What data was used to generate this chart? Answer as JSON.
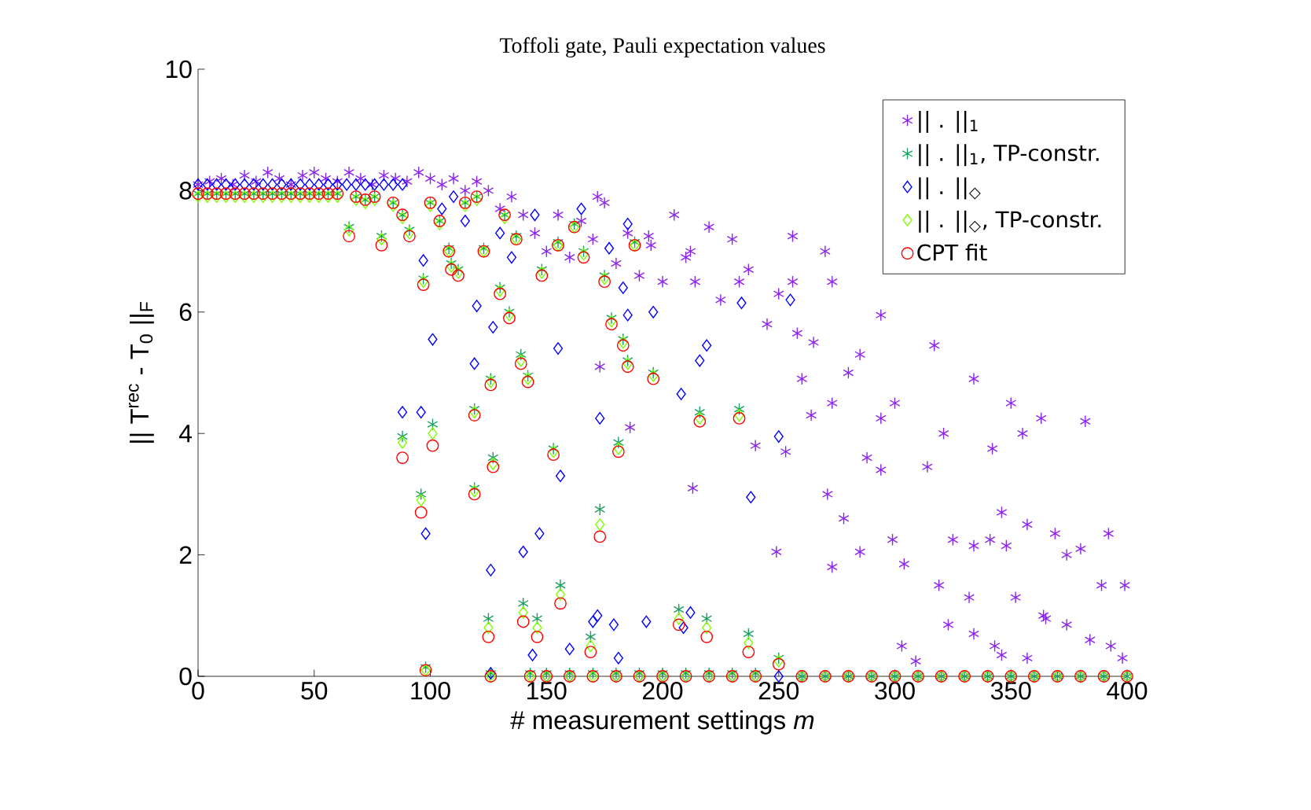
{
  "chart_data": {
    "type": "scatter",
    "title": "Toffoli gate, Pauli expectation values",
    "xlabel": "# measurement settings *m*",
    "ylabel": "|| T$^{rec}$ - T$_{0}$ ||$_{F}$",
    "xlim": [
      0,
      400
    ],
    "ylim": [
      0,
      10
    ],
    "xticks": [
      0,
      50,
      100,
      150,
      200,
      250,
      300,
      350,
      400
    ],
    "yticks": [
      0,
      2,
      4,
      6,
      8,
      10
    ],
    "legend": "top right",
    "series": [
      {
        "name": "|| . ||$_{1}$",
        "color": "#8b22ee",
        "marker": "cross",
        "x": [
          0,
          5,
          10,
          15,
          20,
          25,
          30,
          35,
          40,
          45,
          50,
          55,
          60,
          65,
          70,
          75,
          80,
          85,
          90,
          95,
          100,
          105,
          110,
          115,
          120,
          125,
          130,
          135,
          140,
          145,
          150,
          155,
          160,
          165,
          170,
          172,
          175,
          180,
          185,
          190,
          194,
          195,
          200,
          205,
          210,
          212,
          214,
          220,
          225,
          230,
          233,
          237,
          245,
          250,
          256,
          256,
          258,
          260,
          265,
          270,
          273,
          264,
          273,
          280,
          285,
          288,
          294,
          294,
          294,
          300,
          314,
          317,
          321,
          334,
          355,
          350,
          363,
          342,
          186,
          173,
          213,
          240,
          253,
          249,
          271,
          278,
          285,
          273,
          304,
          299,
          325,
          334,
          348,
          357,
          369,
          380,
          392,
          346,
          341,
          319,
          323,
          334,
          343,
          346,
          357,
          365,
          374,
          384,
          393,
          398,
          389,
          399,
          303,
          309,
          332,
          352,
          364,
          374,
          382
        ],
        "values": [
          8.1,
          8.15,
          8.2,
          8.1,
          8.25,
          8.15,
          8.3,
          8.2,
          8.1,
          8.25,
          8.3,
          8.2,
          8.15,
          8.3,
          8.2,
          8.1,
          8.25,
          8.2,
          8.15,
          8.3,
          8.2,
          8.1,
          8.2,
          8.0,
          8.15,
          8.0,
          7.7,
          7.9,
          7.6,
          7.3,
          7.0,
          7.6,
          6.9,
          7.5,
          7.2,
          7.9,
          7.8,
          6.8,
          7.3,
          6.6,
          7.25,
          7.1,
          6.5,
          7.6,
          6.9,
          7.0,
          6.5,
          7.4,
          6.2,
          7.2,
          6.5,
          6.7,
          5.8,
          6.3,
          7.25,
          6.5,
          5.65,
          4.9,
          5.5,
          7.0,
          6.5,
          4.3,
          4.5,
          5.0,
          5.3,
          3.6,
          3.4,
          5.95,
          4.25,
          4.5,
          3.45,
          5.45,
          4.0,
          4.9,
          4.0,
          4.5,
          4.25,
          3.75,
          4.1,
          5.1,
          3.1,
          3.8,
          3.7,
          2.05,
          3.0,
          2.6,
          2.05,
          1.8,
          1.85,
          2.25,
          2.25,
          2.15,
          2.15,
          2.5,
          2.35,
          2.1,
          2.35,
          2.7,
          2.25,
          1.5,
          0.85,
          0.7,
          0.5,
          0.35,
          0.3,
          0.95,
          0.85,
          0.6,
          0.5,
          0.3,
          1.5,
          1.5,
          0.5,
          0.25,
          1.3,
          1.3,
          1.0,
          2.0,
          4.2
        ]
      },
      {
        "name": "|| . ||$_{1}$, TP-constr.",
        "color": "#17a05c",
        "marker": "cross",
        "x": [
          0,
          4,
          8,
          12,
          16,
          20,
          24,
          28,
          32,
          36,
          40,
          44,
          48,
          52,
          56,
          60,
          65,
          68,
          72,
          76,
          79,
          84,
          88,
          88,
          91,
          96,
          97,
          98,
          100,
          101,
          104,
          108,
          109,
          112,
          115,
          119,
          119,
          120,
          123,
          125,
          126,
          126,
          127,
          130,
          132,
          134,
          137,
          139,
          140,
          142,
          143,
          146,
          148,
          150,
          153,
          155,
          156,
          160,
          162,
          166,
          169,
          170,
          173,
          175,
          178,
          180,
          181,
          183,
          185,
          188,
          190,
          196,
          200,
          207,
          210,
          216,
          219,
          220,
          230,
          233,
          237,
          240,
          250,
          260,
          270,
          280,
          290,
          300,
          310,
          320,
          330,
          340,
          350,
          360,
          370,
          380,
          390,
          400
        ],
        "values": [
          7.95,
          7.95,
          7.95,
          7.95,
          7.95,
          7.95,
          7.95,
          7.95,
          7.95,
          7.95,
          7.95,
          7.95,
          7.95,
          7.95,
          7.95,
          7.95,
          7.4,
          7.9,
          7.85,
          7.9,
          7.25,
          7.8,
          3.95,
          7.6,
          7.35,
          3.0,
          6.55,
          0.15,
          7.8,
          4.15,
          7.5,
          7.05,
          6.8,
          6.7,
          7.8,
          4.4,
          3.1,
          7.9,
          7.05,
          0.95,
          4.9,
          0.05,
          3.6,
          6.4,
          7.6,
          6.0,
          7.25,
          5.3,
          1.2,
          4.95,
          0.05,
          0.95,
          6.7,
          0.05,
          3.75,
          7.15,
          1.5,
          0.05,
          7.45,
          7.0,
          0.65,
          0.05,
          2.75,
          6.6,
          5.9,
          0.05,
          3.85,
          5.55,
          5.2,
          7.15,
          0.05,
          5.0,
          0.05,
          1.1,
          0.05,
          4.35,
          0.95,
          0.05,
          0.05,
          4.4,
          0.7,
          0.05,
          0.3,
          0,
          0,
          0,
          0,
          0,
          0,
          0,
          0,
          0,
          0,
          0,
          0,
          0,
          0,
          0
        ]
      },
      {
        "name": "|| . ||$_{◇}$",
        "color": "#0000ff",
        "marker": "diamond",
        "x": [
          0,
          4,
          8,
          12,
          16,
          20,
          24,
          28,
          32,
          36,
          40,
          44,
          48,
          52,
          56,
          60,
          64,
          68,
          72,
          76,
          80,
          84,
          88,
          88,
          96,
          97,
          98,
          101,
          105,
          110,
          115,
          119,
          120,
          126,
          126,
          127,
          130,
          135,
          140,
          144,
          145,
          147,
          150,
          155,
          156,
          160,
          160,
          165,
          170,
          172,
          173,
          177,
          179,
          181,
          183,
          185,
          185,
          193,
          196,
          208,
          209,
          212,
          216,
          219,
          234,
          238,
          250,
          255,
          180,
          190,
          200,
          210,
          220,
          230,
          240,
          250,
          260,
          270,
          280,
          290,
          300,
          310,
          320,
          330,
          340,
          350,
          360,
          370,
          380,
          390,
          400
        ],
        "values": [
          8.1,
          8.1,
          8.1,
          8.1,
          8.1,
          8.1,
          8.1,
          8.1,
          8.1,
          8.1,
          8.1,
          8.1,
          8.1,
          8.1,
          8.1,
          8.1,
          8.1,
          8.1,
          8.1,
          8.1,
          8.1,
          8.1,
          8.1,
          4.35,
          4.35,
          6.85,
          2.35,
          5.55,
          7.7,
          7.9,
          7.5,
          5.15,
          6.1,
          0.05,
          1.75,
          5.75,
          7.3,
          6.9,
          2.05,
          0.35,
          7.6,
          2.35,
          0,
          5.4,
          3.3,
          0.45,
          0,
          7.7,
          0.9,
          1.0,
          4.25,
          7.05,
          0.85,
          0.3,
          6.4,
          5.95,
          7.45,
          0.9,
          6.0,
          4.65,
          0.8,
          1.05,
          5.2,
          5.45,
          6.15,
          2.95,
          3.95,
          6.2,
          0,
          0,
          0,
          0,
          0,
          0,
          0,
          0,
          0,
          0,
          0,
          0,
          0,
          0,
          0,
          0,
          0,
          0,
          0,
          0,
          0,
          0,
          0
        ]
      },
      {
        "name": "|| . ||$_{◇}$, TP-constr.",
        "color": "#80ff00",
        "marker": "diamond",
        "x": [
          0,
          4,
          8,
          12,
          16,
          20,
          24,
          28,
          32,
          36,
          40,
          44,
          48,
          52,
          56,
          60,
          65,
          68,
          72,
          76,
          79,
          84,
          88,
          88,
          91,
          96,
          97,
          98,
          100,
          101,
          104,
          108,
          109,
          112,
          115,
          119,
          119,
          120,
          123,
          125,
          126,
          126,
          127,
          130,
          132,
          134,
          137,
          139,
          140,
          142,
          143,
          146,
          148,
          150,
          153,
          155,
          156,
          160,
          162,
          166,
          169,
          170,
          173,
          175,
          178,
          180,
          181,
          183,
          185,
          188,
          190,
          196,
          200,
          207,
          210,
          216,
          219,
          220,
          230,
          233,
          237,
          240,
          250,
          260,
          270,
          280,
          290,
          300,
          310,
          320,
          330,
          340,
          350,
          360,
          370,
          380,
          390,
          400
        ],
        "values": [
          7.9,
          7.9,
          7.9,
          7.9,
          7.9,
          7.9,
          7.9,
          7.9,
          7.9,
          7.9,
          7.9,
          7.9,
          7.9,
          7.9,
          7.9,
          7.9,
          7.35,
          7.85,
          7.8,
          7.85,
          7.2,
          7.75,
          3.85,
          7.55,
          7.3,
          2.9,
          6.5,
          0.1,
          7.75,
          4.0,
          7.45,
          7.0,
          6.75,
          6.65,
          7.75,
          4.35,
          3.05,
          7.85,
          7.0,
          0.8,
          4.85,
          0,
          3.5,
          6.35,
          7.55,
          5.95,
          7.2,
          5.2,
          1.05,
          4.9,
          0,
          0.8,
          6.65,
          0,
          3.7,
          7.1,
          1.35,
          0,
          7.4,
          6.95,
          0.5,
          0,
          2.5,
          6.55,
          5.85,
          0,
          3.75,
          5.5,
          5.15,
          7.1,
          0,
          4.95,
          0,
          0.95,
          0,
          4.25,
          0.8,
          0,
          0,
          4.3,
          0.55,
          0,
          0.25,
          0,
          0,
          0,
          0,
          0,
          0,
          0,
          0,
          0,
          0,
          0,
          0,
          0,
          0,
          0
        ]
      },
      {
        "name": "CPT fit",
        "color": "#ff0000",
        "marker": "circle",
        "x": [
          0,
          4,
          8,
          12,
          16,
          20,
          24,
          28,
          32,
          36,
          40,
          44,
          48,
          52,
          56,
          60,
          65,
          68,
          72,
          76,
          79,
          84,
          88,
          88,
          91,
          96,
          97,
          98,
          100,
          101,
          104,
          108,
          109,
          112,
          115,
          119,
          119,
          120,
          123,
          125,
          126,
          126,
          127,
          130,
          132,
          134,
          137,
          139,
          140,
          142,
          143,
          146,
          148,
          150,
          153,
          155,
          156,
          160,
          162,
          166,
          169,
          170,
          173,
          175,
          178,
          180,
          181,
          183,
          185,
          188,
          190,
          196,
          200,
          207,
          210,
          216,
          219,
          220,
          230,
          233,
          237,
          240,
          250,
          260,
          270,
          280,
          290,
          300,
          310,
          320,
          330,
          340,
          350,
          360,
          370,
          380,
          390,
          400
        ],
        "values": [
          7.95,
          7.95,
          7.95,
          7.95,
          7.95,
          7.95,
          7.95,
          7.95,
          7.95,
          7.95,
          7.95,
          7.95,
          7.95,
          7.95,
          7.95,
          7.95,
          7.25,
          7.9,
          7.85,
          7.9,
          7.1,
          7.8,
          3.6,
          7.6,
          7.25,
          2.7,
          6.45,
          0.1,
          7.8,
          3.8,
          7.5,
          7.0,
          6.7,
          6.6,
          7.8,
          4.3,
          3.0,
          7.9,
          7.0,
          0.65,
          4.8,
          0,
          3.45,
          6.3,
          7.6,
          5.9,
          7.2,
          5.15,
          0.9,
          4.85,
          0,
          0.65,
          6.6,
          0,
          3.65,
          7.1,
          1.2,
          0,
          7.4,
          6.9,
          0.4,
          0,
          2.3,
          6.5,
          5.8,
          0,
          3.7,
          5.45,
          5.1,
          7.1,
          0,
          4.9,
          0,
          0.85,
          0,
          4.2,
          0.65,
          0,
          0,
          4.25,
          0.4,
          0,
          0.2,
          0,
          0,
          0,
          0,
          0,
          0,
          0,
          0,
          0,
          0,
          0,
          0,
          0,
          0,
          0
        ]
      }
    ]
  }
}
